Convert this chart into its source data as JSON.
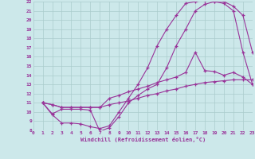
{
  "bg_color": "#cce8ea",
  "grid_color": "#aacccc",
  "line_color": "#993399",
  "xlabel": "Windchill (Refroidissement éolien,°C)",
  "xlim": [
    0,
    23
  ],
  "ylim": [
    8,
    22
  ],
  "yticks": [
    8,
    9,
    10,
    11,
    12,
    13,
    14,
    15,
    16,
    17,
    18,
    19,
    20,
    21,
    22
  ],
  "xticks": [
    0,
    1,
    2,
    3,
    4,
    5,
    6,
    7,
    8,
    9,
    10,
    11,
    12,
    13,
    14,
    15,
    16,
    17,
    18,
    19,
    20,
    21,
    22,
    23
  ],
  "curve1_x": [
    1,
    2,
    3,
    4,
    5,
    6,
    7,
    8,
    9,
    10,
    11,
    12,
    13,
    14,
    15,
    16,
    17,
    18,
    19,
    20,
    21,
    22,
    23
  ],
  "curve1_y": [
    11.0,
    9.7,
    8.8,
    8.8,
    8.7,
    8.4,
    8.2,
    8.5,
    10.0,
    11.5,
    13.0,
    14.8,
    17.2,
    19.0,
    20.5,
    21.8,
    22.0,
    22.1,
    22.0,
    21.8,
    21.0,
    16.5,
    13.0
  ],
  "curve2_x": [
    1,
    2,
    3,
    4,
    5,
    6,
    7,
    8,
    9,
    10,
    11,
    12,
    13,
    14,
    15,
    16,
    17,
    18,
    19,
    20,
    21,
    22,
    23
  ],
  "curve2_y": [
    11.0,
    9.8,
    10.3,
    10.3,
    10.3,
    10.2,
    7.9,
    8.3,
    9.5,
    11.0,
    11.8,
    12.5,
    13.0,
    14.8,
    17.2,
    19.0,
    21.0,
    21.7,
    22.0,
    22.0,
    21.5,
    20.5,
    16.5
  ],
  "curve3_x": [
    1,
    2,
    3,
    4,
    5,
    6,
    7,
    8,
    9,
    10,
    11,
    12,
    13,
    14,
    15,
    16,
    17,
    18,
    19,
    20,
    21,
    22,
    23
  ],
  "curve3_y": [
    11.0,
    10.8,
    10.5,
    10.5,
    10.5,
    10.5,
    10.5,
    11.5,
    11.8,
    12.2,
    12.5,
    12.8,
    13.2,
    13.5,
    13.8,
    14.3,
    16.5,
    14.5,
    14.4,
    14.0,
    14.3,
    13.8,
    13.0
  ],
  "curve4_x": [
    1,
    2,
    3,
    4,
    5,
    6,
    7,
    8,
    9,
    10,
    11,
    12,
    13,
    14,
    15,
    16,
    17,
    18,
    19,
    20,
    21,
    22,
    23
  ],
  "curve4_y": [
    11.0,
    10.8,
    10.5,
    10.5,
    10.5,
    10.5,
    10.5,
    10.8,
    11.0,
    11.2,
    11.5,
    11.8,
    12.0,
    12.3,
    12.5,
    12.8,
    13.0,
    13.2,
    13.3,
    13.4,
    13.5,
    13.5,
    13.5
  ]
}
